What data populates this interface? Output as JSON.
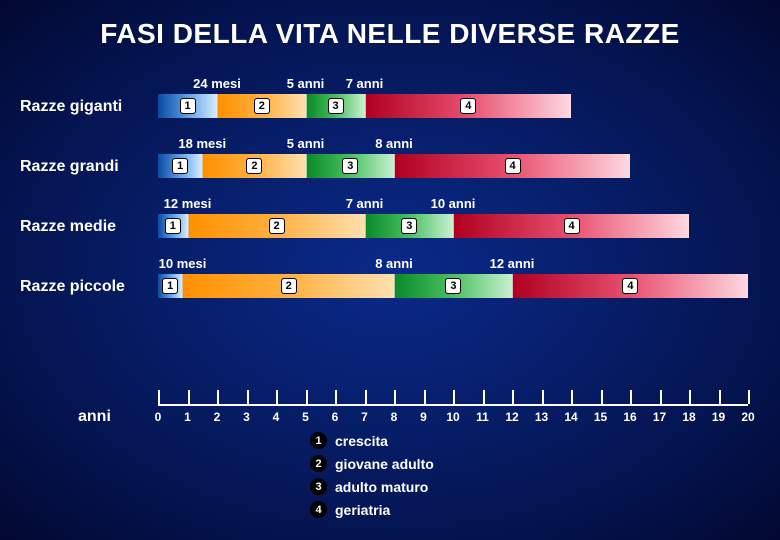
{
  "title": "FASI DELLA VITA NELLE DIVERSE RAZZE",
  "axis": {
    "label": "anni",
    "min": 0,
    "max": 20
  },
  "phase_colors": {
    "1": [
      "#0a4aa0",
      "#5aa0e8",
      "#d8ecff"
    ],
    "2": [
      "#ff9000",
      "#ffb040",
      "#ffe0b0"
    ],
    "3": [
      "#0a8a2a",
      "#4ac060",
      "#c8f0d0"
    ],
    "4": [
      "#b00020",
      "#e85070",
      "#ffd8e0"
    ]
  },
  "rows": [
    {
      "label": "Razze giganti",
      "age_labels": [
        {
          "text": "24 mesi",
          "at": 2
        },
        {
          "text": "5 anni",
          "at": 5
        },
        {
          "text": "7 anni",
          "at": 7
        }
      ],
      "segments": [
        {
          "phase": 1,
          "from": 0,
          "to": 2
        },
        {
          "phase": 2,
          "from": 2,
          "to": 5
        },
        {
          "phase": 3,
          "from": 5,
          "to": 7
        },
        {
          "phase": 4,
          "from": 7,
          "to": 14
        }
      ]
    },
    {
      "label": "Razze grandi",
      "age_labels": [
        {
          "text": "18 mesi",
          "at": 1.5
        },
        {
          "text": "5 anni",
          "at": 5
        },
        {
          "text": "8 anni",
          "at": 8
        }
      ],
      "segments": [
        {
          "phase": 1,
          "from": 0,
          "to": 1.5
        },
        {
          "phase": 2,
          "from": 1.5,
          "to": 5
        },
        {
          "phase": 3,
          "from": 5,
          "to": 8
        },
        {
          "phase": 4,
          "from": 8,
          "to": 16
        }
      ]
    },
    {
      "label": "Razze medie",
      "age_labels": [
        {
          "text": "12 mesi",
          "at": 1
        },
        {
          "text": "7 anni",
          "at": 7
        },
        {
          "text": "10 anni",
          "at": 10
        }
      ],
      "segments": [
        {
          "phase": 1,
          "from": 0,
          "to": 1
        },
        {
          "phase": 2,
          "from": 1,
          "to": 7
        },
        {
          "phase": 3,
          "from": 7,
          "to": 10
        },
        {
          "phase": 4,
          "from": 10,
          "to": 18
        }
      ]
    },
    {
      "label": "Razze piccole",
      "age_labels": [
        {
          "text": "10 mesi",
          "at": 0.83
        },
        {
          "text": "8 anni",
          "at": 8
        },
        {
          "text": "12 anni",
          "at": 12
        }
      ],
      "segments": [
        {
          "phase": 1,
          "from": 0,
          "to": 0.83
        },
        {
          "phase": 2,
          "from": 0.83,
          "to": 8
        },
        {
          "phase": 3,
          "from": 8,
          "to": 12
        },
        {
          "phase": 4,
          "from": 12,
          "to": 20
        }
      ]
    }
  ],
  "legend": [
    {
      "n": "1",
      "text": "crescita"
    },
    {
      "n": "2",
      "text": "giovane adulto"
    },
    {
      "n": "3",
      "text": "adulto maturo"
    },
    {
      "n": "4",
      "text": "geriatria"
    }
  ]
}
